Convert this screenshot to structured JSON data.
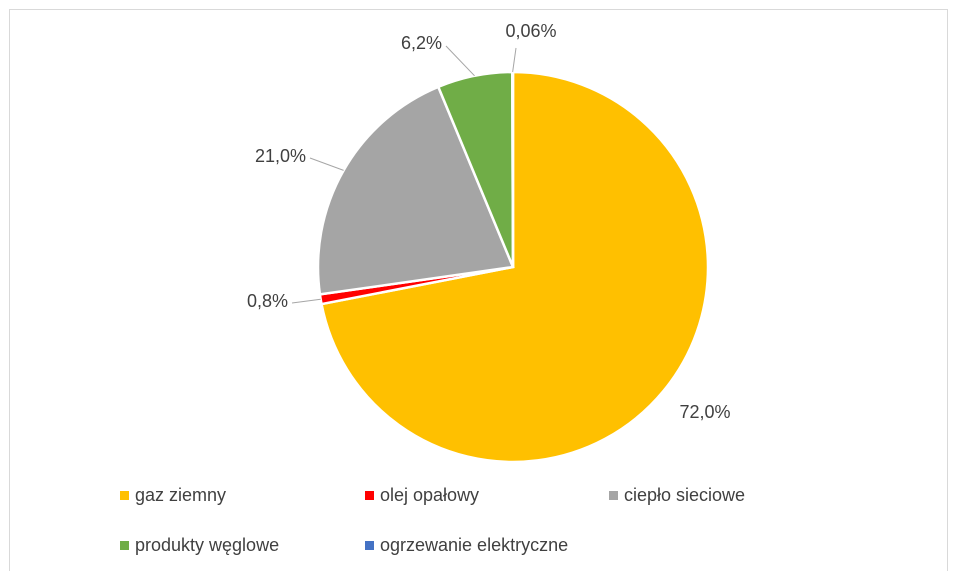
{
  "chart_data": {
    "type": "pie",
    "categories": [
      "gaz ziemny",
      "olej opałowy",
      "ciepło sieciowe",
      "produkty węglowe",
      "ogrzewanie elektryczne"
    ],
    "values": [
      72.0,
      0.8,
      21.0,
      6.2,
      0.06
    ],
    "value_labels": [
      "72,0%",
      "0,8%",
      "21,0%",
      "6,2%",
      "0,06%"
    ],
    "colors": [
      "#FFC000",
      "#FF0000",
      "#A5A5A5",
      "#70AD47",
      "#4472C4"
    ],
    "legend": "bottom"
  }
}
